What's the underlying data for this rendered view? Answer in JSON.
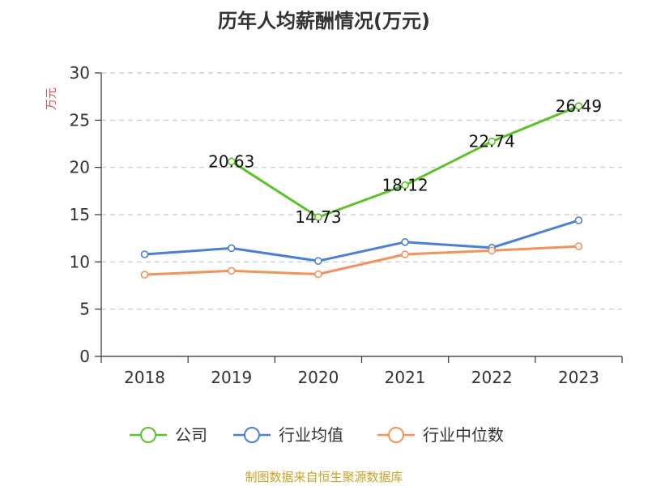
{
  "chart_data": {
    "type": "line",
    "title": "历年人均薪酬情况(万元)",
    "ylabel": "万元",
    "xlabel": "",
    "categories": [
      "2018",
      "2019",
      "2020",
      "2021",
      "2022",
      "2023"
    ],
    "ylim": [
      0,
      30
    ],
    "yticks": [
      0,
      5,
      10,
      15,
      20,
      25,
      30
    ],
    "grid": true,
    "legend_position": "bottom",
    "series": [
      {
        "name": "公司",
        "color": "#5cc12b",
        "values": [
          null,
          20.63,
          14.73,
          18.12,
          22.74,
          26.49
        ],
        "labels": [
          null,
          "20.63",
          "14.73",
          "18.12",
          "22.74",
          "26.49"
        ]
      },
      {
        "name": "行业均值",
        "color": "#4a7fd4",
        "values": [
          10.8,
          11.45,
          10.1,
          12.1,
          11.5,
          14.4
        ],
        "labels": []
      },
      {
        "name": "行业中位数",
        "color": "#f2925d",
        "values": [
          8.65,
          9.05,
          8.7,
          10.8,
          11.2,
          11.65
        ],
        "labels": []
      }
    ]
  },
  "source": "制图数据来自恒生聚源数据库"
}
